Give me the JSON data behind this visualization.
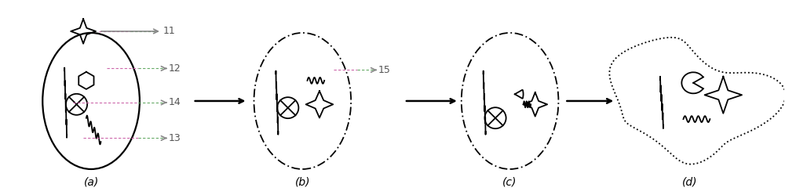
{
  "background_color": "#ffffff",
  "label_a": "(a)",
  "label_b": "(b)",
  "label_c": "(c)",
  "label_d": "(d)",
  "num_11": "11",
  "num_12": "12",
  "num_13": "13",
  "num_14": "14",
  "num_15": "15",
  "text_color": "#555555",
  "line_color": "#000000",
  "dashed_line_color": "#aaaaaa",
  "arrow_color": "#888888",
  "pink_dash_color": "#cc66aa",
  "green_dash_color": "#66aa66"
}
